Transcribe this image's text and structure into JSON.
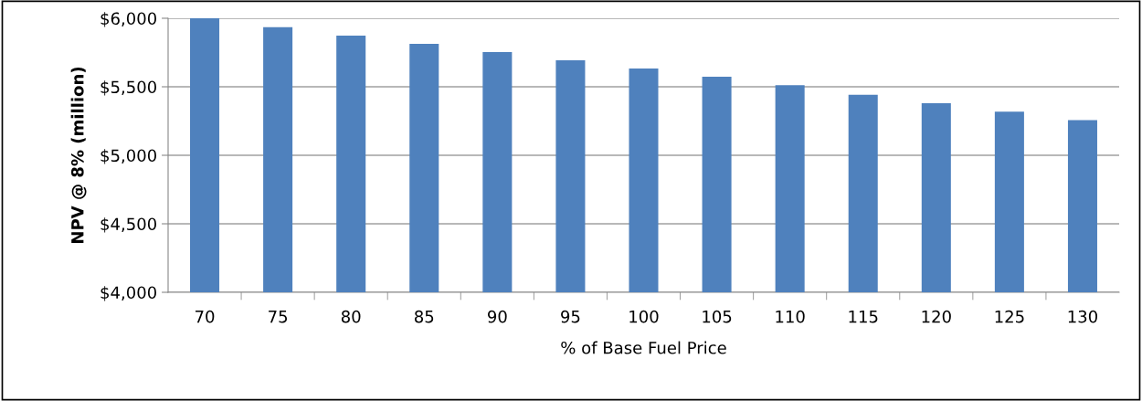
{
  "chart_data": {
    "type": "bar",
    "xlabel": "% of Base Fuel Price",
    "ylabel": "NPV @ 8% (million)",
    "categories": [
      "70",
      "75",
      "80",
      "85",
      "90",
      "95",
      "100",
      "105",
      "110",
      "115",
      "120",
      "125",
      "130"
    ],
    "values": [
      6000,
      5935,
      5874,
      5814,
      5753,
      5693,
      5633,
      5573,
      5512,
      5441,
      5380,
      5319,
      5257
    ],
    "color": "#4f81bd",
    "ylim": [
      4000,
      6000
    ],
    "yticks": [
      {
        "value": 4000,
        "label": "$4,000"
      },
      {
        "value": 4500,
        "label": "$4,500"
      },
      {
        "value": 5000,
        "label": "$5,000"
      },
      {
        "value": 5500,
        "label": "$5,500"
      },
      {
        "value": 6000,
        "label": "$6,000"
      }
    ],
    "grid": "y",
    "legend": false
  }
}
